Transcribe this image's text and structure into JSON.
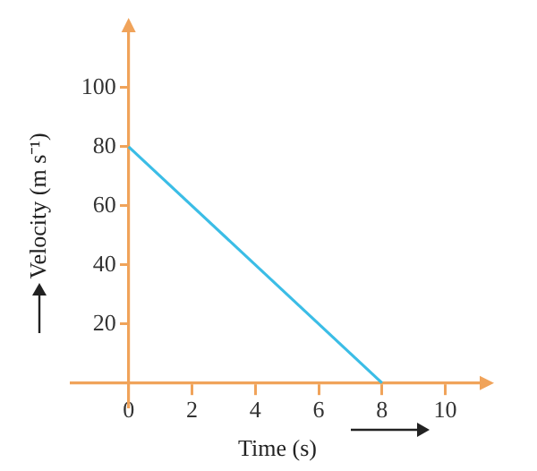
{
  "chart_data": {
    "type": "line",
    "xlabel": "Time (s)",
    "ylabel": "Velocity (m s⁻¹)",
    "x": [
      0,
      8
    ],
    "values": [
      80,
      0
    ],
    "color": "#3bbde6",
    "xlim": [
      -1.8,
      11.2
    ],
    "ylim": [
      -8,
      120
    ],
    "xticks": [
      0,
      2,
      4,
      6,
      8,
      10
    ],
    "yticks": [
      20,
      40,
      60,
      80,
      100
    ],
    "marker": "none",
    "grid": false,
    "legend": false
  }
}
